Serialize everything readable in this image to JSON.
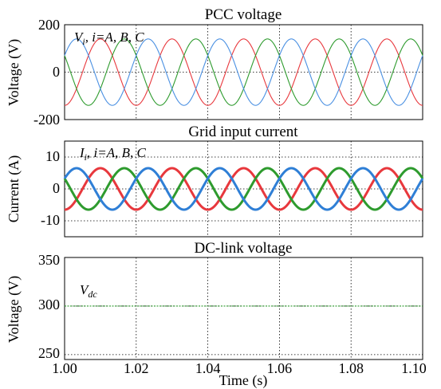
{
  "chart_data": [
    {
      "type": "line",
      "title": "PCC voltage",
      "ylabel": "Voltage (V)",
      "xlabel": "",
      "xlim": [
        1.0,
        1.1
      ],
      "ylim": [
        -200,
        200
      ],
      "yticks": [
        "200",
        "0",
        "-200"
      ],
      "annotation": {
        "main": "V",
        "sub": "i",
        "rest": ", i=A, B, C"
      },
      "grid": true,
      "series": [
        {
          "color": "#e8383d",
          "amplitude": 140,
          "frequency_hz": 50,
          "phase_deg": -90
        },
        {
          "color": "#2e9b2e",
          "amplitude": 140,
          "frequency_hz": 50,
          "phase_deg": 150
        },
        {
          "color": "#4a90e2",
          "amplitude": 140,
          "frequency_hz": 50,
          "phase_deg": 30
        }
      ]
    },
    {
      "type": "line",
      "title": "Grid input current",
      "ylabel": "Current (A)",
      "xlabel": "",
      "xlim": [
        1.0,
        1.1
      ],
      "ylim": [
        -15,
        15
      ],
      "yticks": [
        "10",
        "0",
        "-10"
      ],
      "annotation": {
        "main": "I",
        "sub": "i",
        "rest": ", i=A, B, C"
      },
      "grid": true,
      "series": [
        {
          "color": "#e8383d",
          "amplitude": 6.5,
          "frequency_hz": 50,
          "phase_deg": -90
        },
        {
          "color": "#2e9b2e",
          "amplitude": 6.5,
          "frequency_hz": 50,
          "phase_deg": 150
        },
        {
          "color": "#2f7fd6",
          "amplitude": 6.5,
          "frequency_hz": 50,
          "phase_deg": 30
        }
      ]
    },
    {
      "type": "line",
      "title": "DC-link voltage",
      "ylabel": "Voltage (V)",
      "xlabel": "Time (s)",
      "xlim": [
        1.0,
        1.1
      ],
      "ylim": [
        245,
        350
      ],
      "yticks": [
        "350",
        "300",
        "250"
      ],
      "annotation": {
        "main": "V",
        "sub": "dc",
        "rest": ""
      },
      "grid": true,
      "series": [
        {
          "color": "#2e9b2e",
          "constant": 300
        }
      ]
    }
  ],
  "xticks": [
    "1.00",
    "1.02",
    "1.04",
    "1.06",
    "1.08",
    "1.10"
  ],
  "xtick_values": [
    1.0,
    1.02,
    1.04,
    1.06,
    1.08,
    1.1
  ]
}
